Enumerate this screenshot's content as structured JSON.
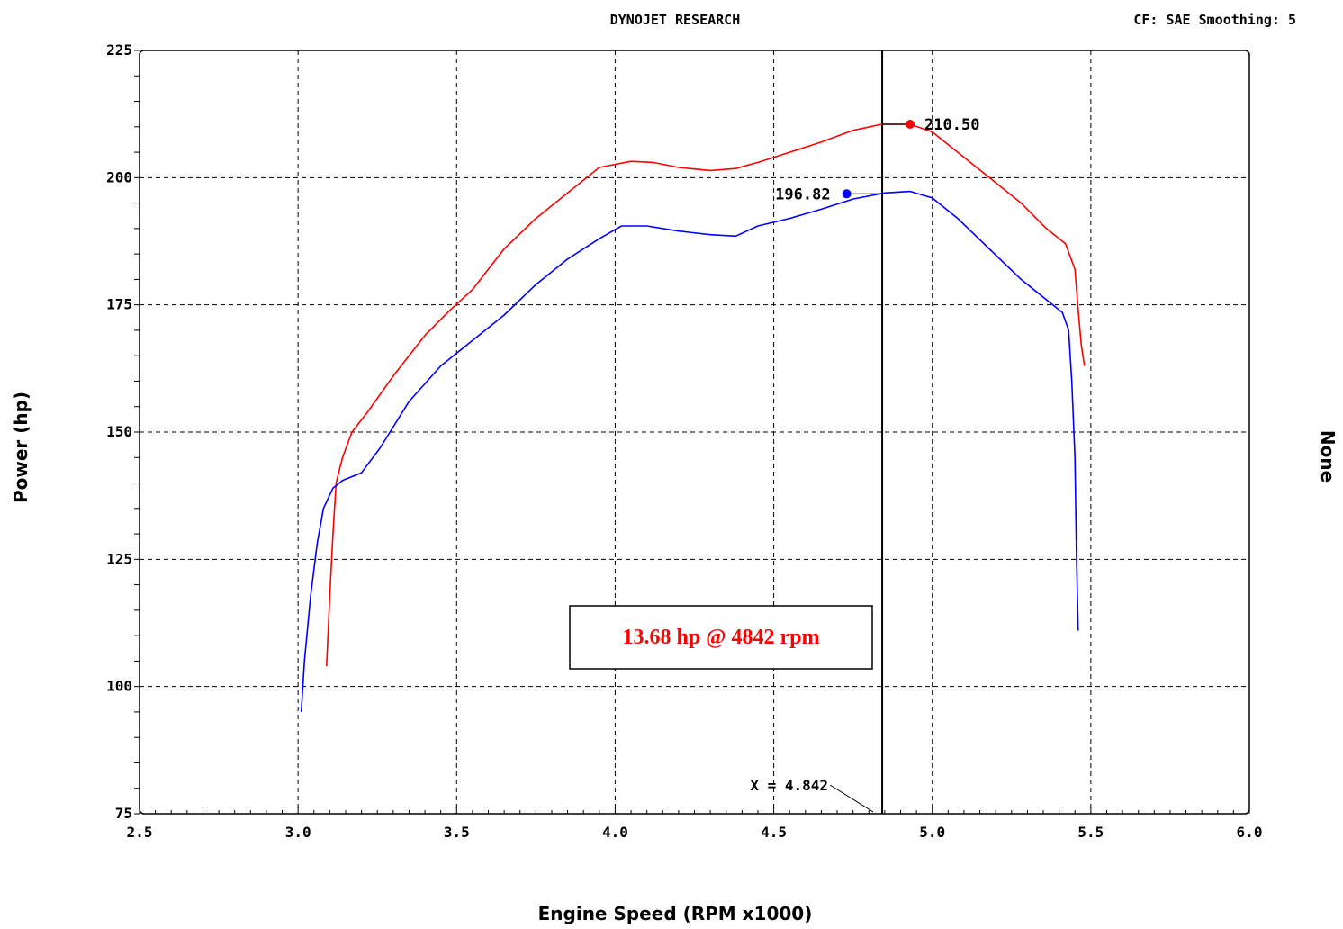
{
  "header": {
    "title": "DYNOJET RESEARCH",
    "settings": "CF: SAE  Smoothing: 5"
  },
  "right_axis_label": "None",
  "annotation": {
    "text": "13.68 hp @ 4842 rpm",
    "color": "#ff0000"
  },
  "cursor": {
    "label": "X = 4.842",
    "x": 4.842
  },
  "chart_data": {
    "type": "line",
    "title": "DYNOJET RESEARCH",
    "xlabel": "Engine Speed (RPM x1000)",
    "ylabel": "Power (hp)",
    "xlim": [
      2.5,
      6.0
    ],
    "ylim": [
      75,
      225
    ],
    "xticks": [
      2.5,
      3.0,
      3.5,
      4.0,
      4.5,
      5.0,
      5.5,
      6.0
    ],
    "xtick_labels": [
      "2.5",
      "3.0",
      "3.5",
      "4.0",
      "4.5",
      "5.0",
      "5.5",
      "6.0"
    ],
    "yticks": [
      75,
      100,
      125,
      150,
      175,
      200,
      225
    ],
    "ytick_labels": [
      "75",
      "100",
      "125",
      "150",
      "175",
      "200",
      "225"
    ],
    "grid": true,
    "series": [
      {
        "color": "#ff0000",
        "peak": {
          "x": 4.93,
          "y": 210.5,
          "label": "210.50"
        },
        "points": [
          [
            3.09,
            104
          ],
          [
            3.1,
            118
          ],
          [
            3.11,
            130
          ],
          [
            3.12,
            140
          ],
          [
            3.14,
            145
          ],
          [
            3.17,
            150
          ],
          [
            3.22,
            154
          ],
          [
            3.3,
            161
          ],
          [
            3.4,
            169
          ],
          [
            3.48,
            174
          ],
          [
            3.55,
            178
          ],
          [
            3.65,
            186
          ],
          [
            3.75,
            192
          ],
          [
            3.85,
            197
          ],
          [
            3.95,
            202
          ],
          [
            4.05,
            203.2
          ],
          [
            4.12,
            203
          ],
          [
            4.2,
            202
          ],
          [
            4.3,
            201.4
          ],
          [
            4.38,
            201.8
          ],
          [
            4.45,
            203
          ],
          [
            4.55,
            205
          ],
          [
            4.65,
            207
          ],
          [
            4.75,
            209.3
          ],
          [
            4.84,
            210.5
          ],
          [
            4.93,
            210.5
          ],
          [
            5.0,
            209
          ],
          [
            5.08,
            205
          ],
          [
            5.18,
            200
          ],
          [
            5.28,
            195
          ],
          [
            5.36,
            190
          ],
          [
            5.42,
            187
          ],
          [
            5.45,
            182
          ],
          [
            5.46,
            174
          ],
          [
            5.47,
            167
          ],
          [
            5.48,
            163
          ]
        ]
      },
      {
        "color": "#0000ff",
        "peak": {
          "x": 4.73,
          "y": 196.82,
          "label": "196.82"
        },
        "points": [
          [
            3.01,
            95
          ],
          [
            3.02,
            105
          ],
          [
            3.04,
            118
          ],
          [
            3.06,
            128
          ],
          [
            3.08,
            135
          ],
          [
            3.11,
            139
          ],
          [
            3.14,
            140.5
          ],
          [
            3.2,
            142
          ],
          [
            3.26,
            147
          ],
          [
            3.35,
            156
          ],
          [
            3.45,
            163
          ],
          [
            3.55,
            168
          ],
          [
            3.65,
            173
          ],
          [
            3.75,
            179
          ],
          [
            3.85,
            184
          ],
          [
            3.95,
            188
          ],
          [
            4.02,
            190.5
          ],
          [
            4.1,
            190.5
          ],
          [
            4.2,
            189.5
          ],
          [
            4.3,
            188.8
          ],
          [
            4.38,
            188.5
          ],
          [
            4.45,
            190.5
          ],
          [
            4.55,
            192
          ],
          [
            4.65,
            193.8
          ],
          [
            4.75,
            195.8
          ],
          [
            4.85,
            197
          ],
          [
            4.93,
            197.3
          ],
          [
            5.0,
            196
          ],
          [
            5.08,
            192
          ],
          [
            5.18,
            186
          ],
          [
            5.28,
            180
          ],
          [
            5.36,
            176
          ],
          [
            5.41,
            173.5
          ],
          [
            5.43,
            170
          ],
          [
            5.44,
            160
          ],
          [
            5.45,
            145
          ],
          [
            5.455,
            125
          ],
          [
            5.46,
            111
          ]
        ]
      }
    ]
  }
}
